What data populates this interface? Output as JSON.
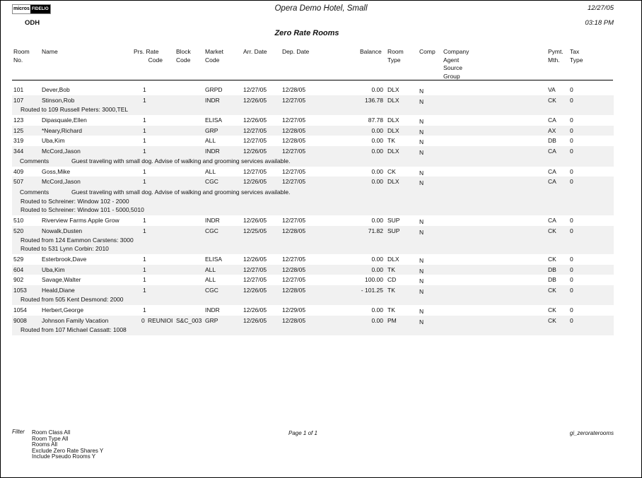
{
  "header": {
    "logo": {
      "left": "micros",
      "right": "FIDELIO"
    },
    "hotel": "Opera Demo Hotel, Small",
    "date": "12/27/05",
    "time": "03:18 PM",
    "property": "ODH",
    "report_title": "Zero Rate Rooms"
  },
  "columns": {
    "room": [
      "Room",
      "No."
    ],
    "name": [
      "Name"
    ],
    "prs_rate": [
      "Prs. Rate",
      "Code"
    ],
    "block": [
      "Block",
      "Code"
    ],
    "market": [
      "Market",
      "Code"
    ],
    "arr": [
      "Arr. Date"
    ],
    "dep": [
      "Dep. Date"
    ],
    "balance": [
      "Balance"
    ],
    "room_type": [
      "Room",
      "Type"
    ],
    "comp": [
      "Comp"
    ],
    "company": [
      "Company",
      "Agent",
      "Source",
      "Group"
    ],
    "pymt": [
      "Pymt.",
      "Mth."
    ],
    "tax": [
      "Tax",
      "Type"
    ]
  },
  "records": [
    {
      "room": "101",
      "name": "Dever,Bob",
      "prs": "1",
      "rate": "",
      "block": "",
      "market": "GRPD",
      "arr": "12/27/05",
      "dep": "12/28/05",
      "balance": "0.00",
      "type": "DLX",
      "comp": "N",
      "pymt": "VA",
      "tax": "0",
      "extra": []
    },
    {
      "room": "107",
      "name": "Stinson,Rob",
      "prs": "1",
      "rate": "",
      "block": "",
      "market": "INDR",
      "arr": "12/26/05",
      "dep": "12/27/05",
      "balance": "136.78",
      "type": "DLX",
      "comp": "N",
      "pymt": "CK",
      "tax": "0",
      "extra": [
        {
          "label": "",
          "text": "Routed to 109 Russell Peters: 3000,TEL"
        }
      ]
    },
    {
      "room": "123",
      "name": "Dipasquale,Ellen",
      "prs": "1",
      "rate": "",
      "block": "",
      "market": "ELISA",
      "arr": "12/26/05",
      "dep": "12/27/05",
      "balance": "87.78",
      "type": "DLX",
      "comp": "N",
      "pymt": "CA",
      "tax": "0",
      "extra": []
    },
    {
      "room": "125",
      "name": "*Neary,Richard",
      "prs": "1",
      "rate": "",
      "block": "",
      "market": "GRP",
      "arr": "12/27/05",
      "dep": "12/28/05",
      "balance": "0.00",
      "type": "DLX",
      "comp": "N",
      "pymt": "AX",
      "tax": "0",
      "extra": []
    },
    {
      "room": "319",
      "name": "Uba,Kim",
      "prs": "1",
      "rate": "",
      "block": "",
      "market": "ALL",
      "arr": "12/27/05",
      "dep": "12/28/05",
      "balance": "0.00",
      "type": "TK",
      "comp": "N",
      "pymt": "DB",
      "tax": "0",
      "extra": []
    },
    {
      "room": "344",
      "name": "McCord,Jason",
      "prs": "1",
      "rate": "",
      "block": "",
      "market": "INDR",
      "arr": "12/26/05",
      "dep": "12/27/05",
      "balance": "0.00",
      "type": "DLX",
      "comp": "N",
      "pymt": "CA",
      "tax": "0",
      "extra": [
        {
          "label": "Comments",
          "text": "Guest traveling with small dog. Advise of walking and grooming services available."
        }
      ]
    },
    {
      "room": "409",
      "name": "Goss,Mike",
      "prs": "1",
      "rate": "",
      "block": "",
      "market": "ALL",
      "arr": "12/27/05",
      "dep": "12/27/05",
      "balance": "0.00",
      "type": "CK",
      "comp": "N",
      "pymt": "CA",
      "tax": "0",
      "extra": []
    },
    {
      "room": "507",
      "name": "McCord,Jason",
      "prs": "1",
      "rate": "",
      "block": "",
      "market": "CGC",
      "arr": "12/26/05",
      "dep": "12/27/05",
      "balance": "0.00",
      "type": "DLX",
      "comp": "N",
      "pymt": "CA",
      "tax": "0",
      "extra": [
        {
          "label": "Comments",
          "text": "Guest traveling with small dog. Advise of walking and grooming services available."
        },
        {
          "label": "",
          "text": "Routed to Schreiner: Window 102 - 2000"
        },
        {
          "label": "",
          "text": "Routed to Schreiner: Window 101 - 5000,5010"
        }
      ]
    },
    {
      "room": "510",
      "name": "Riverview Farms Apple Growers",
      "prs": "1",
      "rate": "",
      "block": "",
      "market": "INDR",
      "arr": "12/26/05",
      "dep": "12/27/05",
      "balance": "0.00",
      "type": "SUP",
      "comp": "N",
      "pymt": "CA",
      "tax": "0",
      "extra": []
    },
    {
      "room": "520",
      "name": "Nowalk,Dusten",
      "prs": "1",
      "rate": "",
      "block": "",
      "market": "CGC",
      "arr": "12/25/05",
      "dep": "12/28/05",
      "balance": "71.82",
      "type": "SUP",
      "comp": "N",
      "pymt": "CK",
      "tax": "0",
      "extra": [
        {
          "label": "",
          "text": "Routed from 124 Eammon Carstens: 3000"
        },
        {
          "label": "",
          "text": "Routed to 531 Lynn Corbin: 2010"
        }
      ]
    },
    {
      "room": "529",
      "name": "Esterbrook,Dave",
      "prs": "1",
      "rate": "",
      "block": "",
      "market": "ELISA",
      "arr": "12/26/05",
      "dep": "12/27/05",
      "balance": "0.00",
      "type": "DLX",
      "comp": "N",
      "pymt": "CK",
      "tax": "0",
      "extra": []
    },
    {
      "room": "604",
      "name": "Uba,Kim",
      "prs": "1",
      "rate": "",
      "block": "",
      "market": "ALL",
      "arr": "12/27/05",
      "dep": "12/28/05",
      "balance": "0.00",
      "type": "TK",
      "comp": "N",
      "pymt": "DB",
      "tax": "0",
      "extra": []
    },
    {
      "room": "902",
      "name": "Savage,Walter",
      "prs": "1",
      "rate": "",
      "block": "",
      "market": "ALL",
      "arr": "12/27/05",
      "dep": "12/27/05",
      "balance": "100.00",
      "type": "CD",
      "comp": "N",
      "pymt": "DB",
      "tax": "0",
      "extra": []
    },
    {
      "room": "1053",
      "name": "Heald,Diane",
      "prs": "1",
      "rate": "",
      "block": "",
      "market": "CGC",
      "arr": "12/26/05",
      "dep": "12/28/05",
      "balance": "- 101.25",
      "type": "TK",
      "comp": "N",
      "pymt": "CK",
      "tax": "0",
      "extra": [
        {
          "label": "",
          "text": "Routed from 505 Kent Desmond: 2000"
        }
      ]
    },
    {
      "room": "1054",
      "name": "Herbert,George",
      "prs": "1",
      "rate": "",
      "block": "",
      "market": "INDR",
      "arr": "12/26/05",
      "dep": "12/29/05",
      "balance": "0.00",
      "type": "TK",
      "comp": "N",
      "pymt": "CK",
      "tax": "0",
      "extra": []
    },
    {
      "room": "9008",
      "name": "Johnson Family Vacation",
      "prs": "0",
      "rate": "REUNIOI",
      "block": "S&C_003",
      "market": "GRP",
      "arr": "12/26/05",
      "dep": "12/28/05",
      "balance": "0.00",
      "type": "PM",
      "comp": "N",
      "pymt": "CK",
      "tax": "0",
      "extra": [
        {
          "label": "",
          "text": "Routed from 107 Michael Cassatt: 1008"
        }
      ]
    }
  ],
  "footer": {
    "filter_label": "Filter",
    "filters": [
      "Room Class All",
      "Room Type All",
      "Rooms All",
      "Exclude Zero Rate Shares Y",
      "Include Pseudo Rooms Y"
    ],
    "page": "Page 1 of 1",
    "report_id": "gi_zeroraterooms"
  }
}
